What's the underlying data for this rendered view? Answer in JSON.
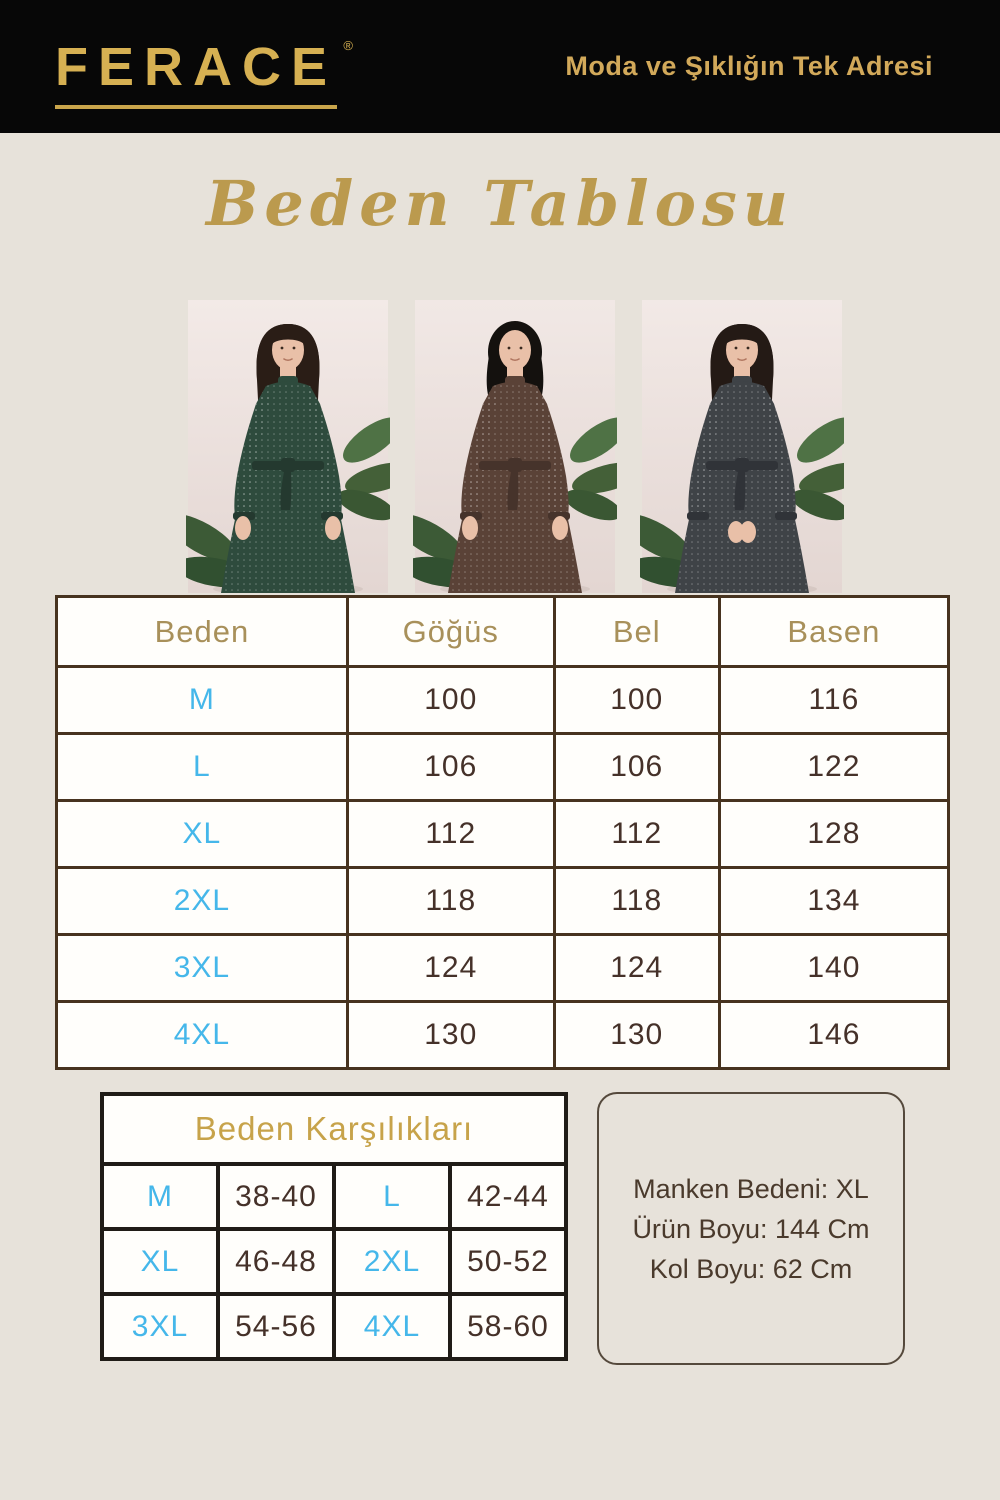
{
  "brand": {
    "logo": "FERACE",
    "registered_mark": "®",
    "tagline": "Moda ve Şıklığın Tek Adresi"
  },
  "page_title": "Beden Tablosu",
  "models": [
    {
      "name": "model-green-dress",
      "dress": "#2e4b3d",
      "dress_dark": "#24392f",
      "hair_style": "long",
      "hair": "#2a1d16",
      "skin": "#e9c0a8",
      "bg": "#f3eae7"
    },
    {
      "name": "model-hijab-brown-dress",
      "dress": "#5a4237",
      "dress_dark": "#46332b",
      "hair_style": "hijab",
      "hair": "#14110e",
      "skin": "#e9c0a8",
      "bg": "#f1e8e5"
    },
    {
      "name": "model-charcoal-dress",
      "dress": "#3f4347",
      "dress_dark": "#303338",
      "hair_style": "long",
      "hair": "#241a15",
      "skin": "#e9c0a8",
      "bg": "#f2e9e6"
    }
  ],
  "size_table": {
    "headers": [
      "Beden",
      "Göğüs",
      "Bel",
      "Basen"
    ],
    "rows": [
      {
        "size": "M",
        "values": [
          "100",
          "100",
          "116"
        ]
      },
      {
        "size": "L",
        "values": [
          "106",
          "106",
          "122"
        ]
      },
      {
        "size": "XL",
        "values": [
          "112",
          "112",
          "128"
        ]
      },
      {
        "size": "2XL",
        "values": [
          "118",
          "118",
          "134"
        ]
      },
      {
        "size": "3XL",
        "values": [
          "124",
          "124",
          "140"
        ]
      },
      {
        "size": "4XL",
        "values": [
          "130",
          "130",
          "146"
        ]
      }
    ]
  },
  "equivalents_table": {
    "title": "Beden Karşılıkları",
    "rows": [
      [
        {
          "type": "size",
          "text": "M"
        },
        {
          "type": "range",
          "text": "38-40"
        },
        {
          "type": "size",
          "text": "L"
        },
        {
          "type": "range",
          "text": "42-44"
        }
      ],
      [
        {
          "type": "size",
          "text": "XL"
        },
        {
          "type": "range",
          "text": "46-48"
        },
        {
          "type": "size",
          "text": "2XL"
        },
        {
          "type": "range",
          "text": "50-52"
        }
      ],
      [
        {
          "type": "size",
          "text": "3XL"
        },
        {
          "type": "range",
          "text": "54-56"
        },
        {
          "type": "size",
          "text": "4XL"
        },
        {
          "type": "range",
          "text": "58-60"
        }
      ]
    ]
  },
  "info_box": {
    "lines": [
      "Manken Bedeni: XL",
      "Ürün Boyu: 144 Cm",
      "Kol Boyu: 62 Cm"
    ]
  },
  "colors": {
    "page_background": "#e7e2da",
    "header_background": "#070707",
    "brand_gold": "#d6b052",
    "table_header_gold": "#a8905a",
    "equiv_title_gold": "#c7a34a",
    "size_blue": "#45b7ea",
    "value_brown": "#453129",
    "main_table_border": "#47331f",
    "equiv_table_border": "#201c17",
    "leaf_green": "#44603c"
  }
}
